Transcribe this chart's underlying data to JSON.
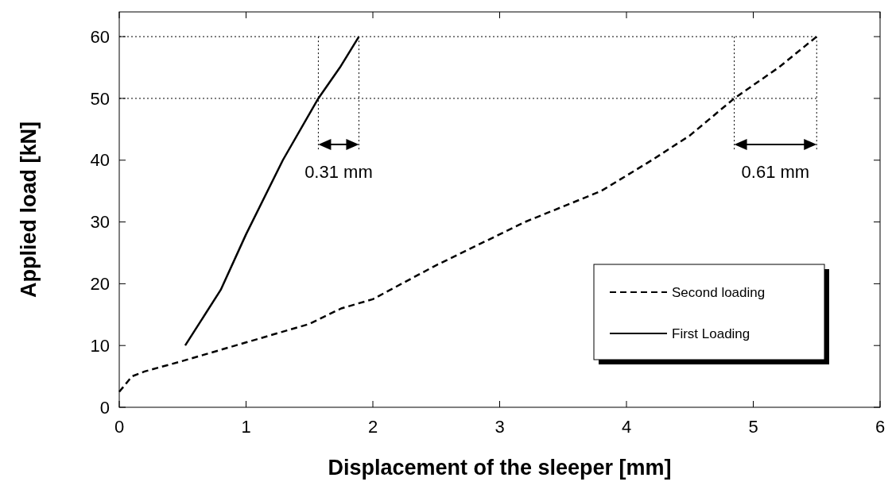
{
  "chart_data": {
    "type": "line",
    "xlabel": "Displacement of the sleeper [mm]",
    "ylabel": "Applied load [kN]",
    "xlim": [
      0,
      6
    ],
    "ylim": [
      0,
      64
    ],
    "xticks": [
      0,
      1,
      2,
      3,
      4,
      5,
      6
    ],
    "yticks": [
      0,
      10,
      20,
      30,
      40,
      50,
      60
    ],
    "grid": false,
    "legend": "bottom right",
    "marker": "none",
    "series": [
      {
        "name": "Second loading",
        "color": "#000000",
        "line_style": "dashed",
        "x": [
          0,
          0.1,
          0.2,
          0.5,
          1,
          1.5,
          1.75,
          2,
          2.5,
          3,
          3.2,
          3.8,
          4.2,
          4.5,
          4.85,
          5.2,
          5.5
        ],
        "values": [
          2.5,
          5,
          5.8,
          7.5,
          10.5,
          13.5,
          16,
          17.5,
          23,
          28,
          30,
          35,
          40,
          44,
          50,
          55,
          60
        ]
      },
      {
        "name": "First Loading",
        "color": "#000000",
        "line_style": "solid",
        "x": [
          0.52,
          0.8,
          1.0,
          1.29,
          1.57,
          1.74,
          1.89
        ],
        "values": [
          10,
          19,
          28,
          40,
          50,
          55,
          60
        ]
      }
    ],
    "ref_lines": [
      {
        "axis": "y",
        "value": 60,
        "line_style": "dotted"
      },
      {
        "axis": "y",
        "value": 50,
        "line_style": "dotted"
      },
      {
        "axis": "x",
        "value": 1.57,
        "line_style": "dotted"
      },
      {
        "axis": "x",
        "value": 1.89,
        "line_style": "dotted"
      },
      {
        "axis": "x",
        "value": 4.85,
        "line_style": "dotted"
      },
      {
        "axis": "x",
        "value": 5.5,
        "line_style": "dotted"
      }
    ],
    "annotations": [
      "0.31 mm",
      "0.61 mm"
    ]
  }
}
